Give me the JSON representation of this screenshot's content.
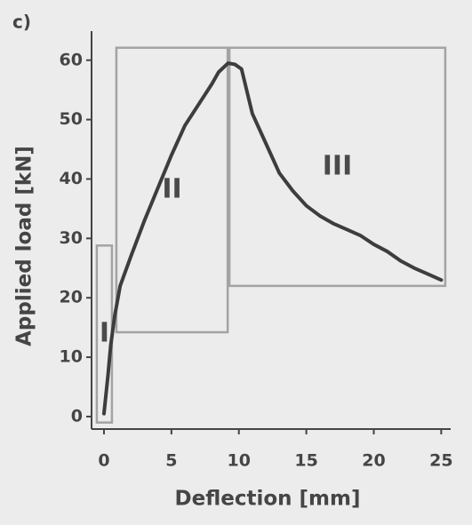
{
  "chart_data": {
    "type": "line",
    "panel_label": "c)",
    "x_label": "Deflection [mm]",
    "y_label": "Applied load [kN]",
    "xlim": [
      -0.92,
      25.7
    ],
    "ylim": [
      -2.1,
      64.9
    ],
    "xticks": [
      0,
      5,
      10,
      15,
      20,
      25
    ],
    "yticks": [
      0,
      10,
      20,
      30,
      40,
      50,
      60
    ],
    "series": [
      {
        "color": "#3d3d3d",
        "x": [
          0,
          0.3,
          0.5,
          0.8,
          1.2,
          2,
          3,
          4,
          5,
          6,
          7,
          8,
          8.5,
          9.2,
          9.7,
          10.2,
          11,
          12,
          13,
          14,
          15,
          16,
          17,
          18,
          19,
          20,
          21,
          22,
          23,
          24,
          25
        ],
        "values": [
          0.5,
          7,
          12,
          17,
          22,
          27,
          33,
          38.5,
          44,
          49,
          52.5,
          56,
          58,
          59.5,
          59.3,
          58.5,
          51,
          46,
          41,
          38,
          35.5,
          33.8,
          32.5,
          31.5,
          30.5,
          29,
          27.8,
          26.2,
          25,
          24,
          23
        ]
      }
    ],
    "regions": [
      {
        "label": "I",
        "x": [
          -0.53,
          0.59
        ],
        "y": [
          -1.0,
          28.8
        ]
      },
      {
        "label": "II",
        "x": [
          0.92,
          9.17
        ],
        "y": [
          14.2,
          62.1
        ]
      },
      {
        "label": "III",
        "x": [
          9.3,
          25.3
        ],
        "y": [
          22,
          62.1
        ]
      }
    ],
    "region_color": "#a3a3a3"
  }
}
